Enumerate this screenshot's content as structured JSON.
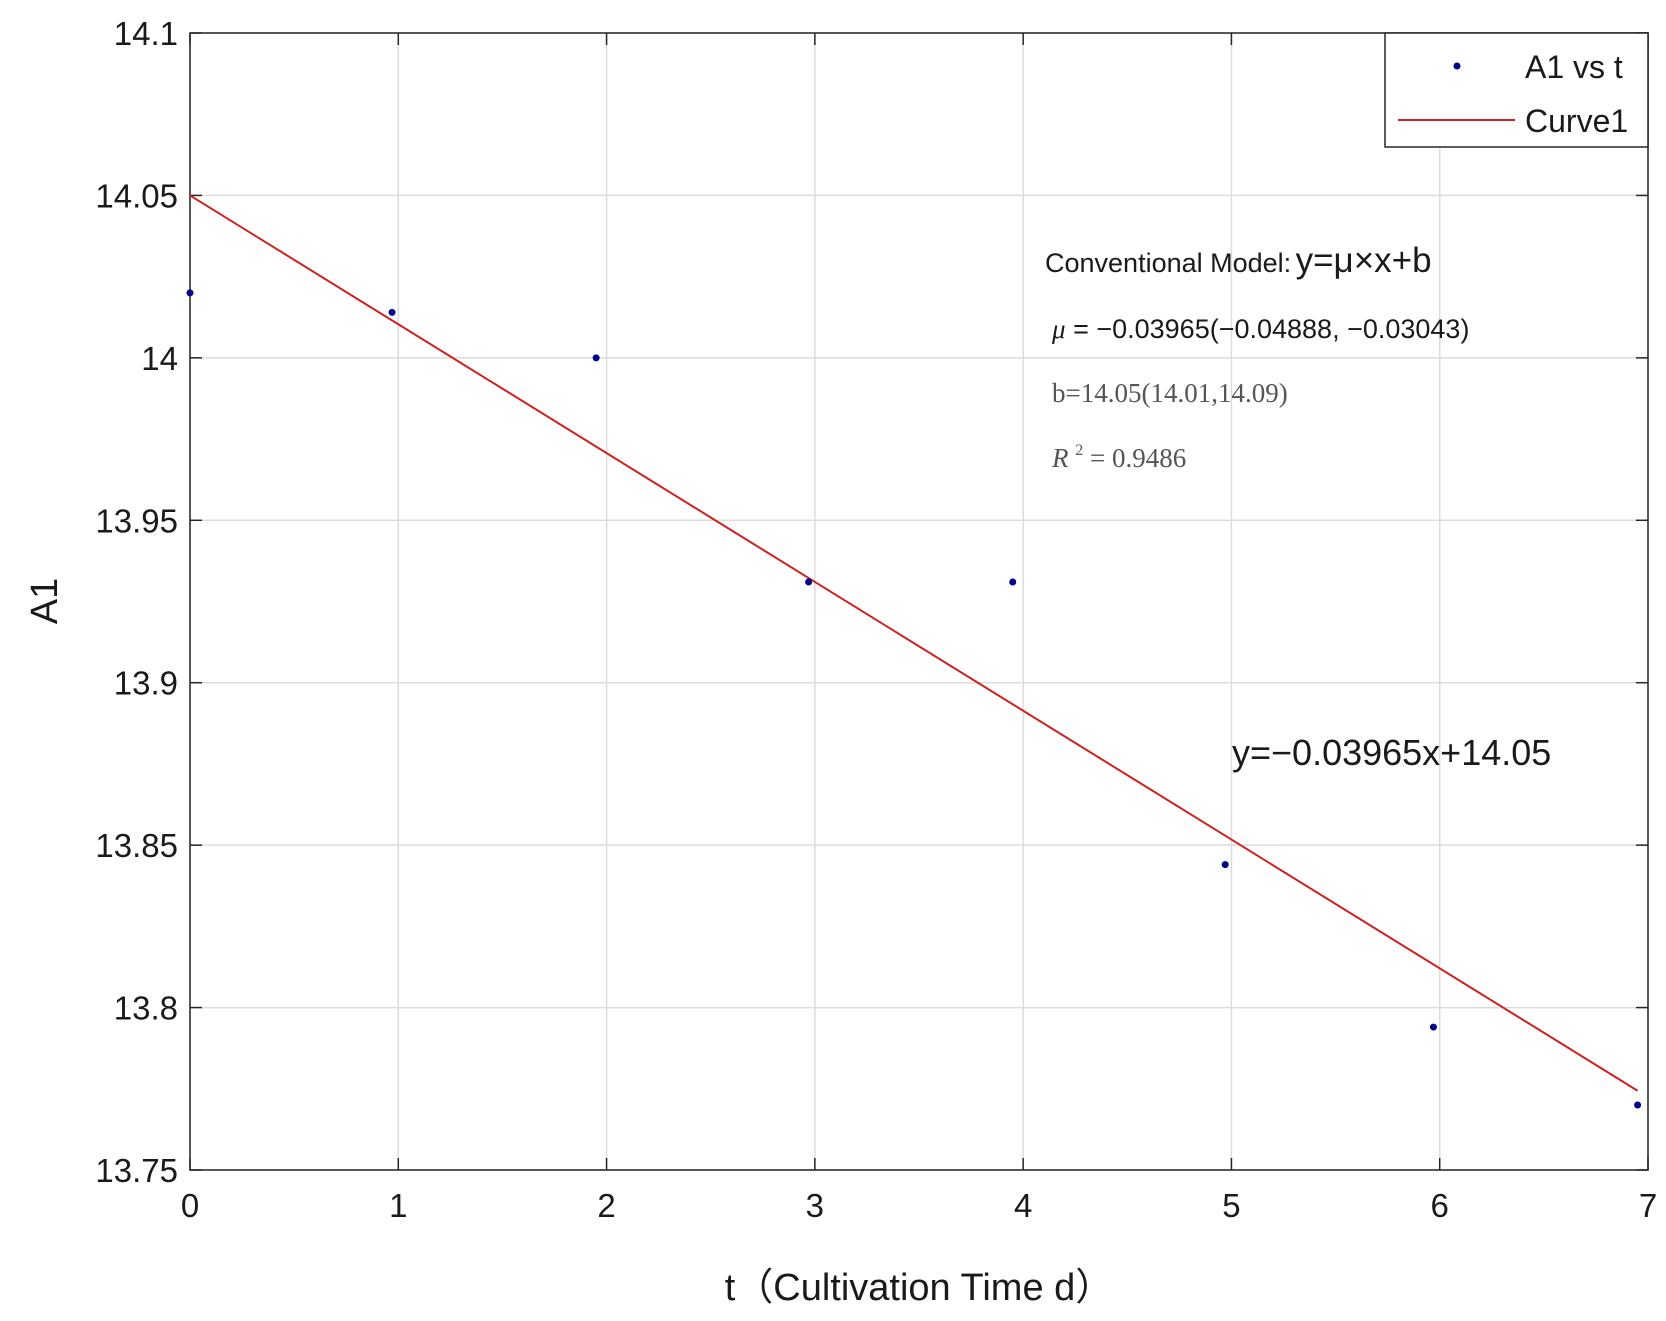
{
  "chart_data": {
    "type": "scatter",
    "xlabel": "t（Cultivation Time d）",
    "ylabel": "A1",
    "xlim": [
      0,
      7
    ],
    "ylim": [
      13.75,
      14.1
    ],
    "x_ticks": [
      "0",
      "1",
      "2",
      "3",
      "4",
      "5",
      "6",
      "7"
    ],
    "y_ticks": [
      "13.75",
      "13.8",
      "13.85",
      "13.9",
      "13.95",
      "14",
      "14.05",
      "14.1"
    ],
    "grid": true,
    "legend_position": "top-right",
    "series": [
      {
        "name": "A1 vs t",
        "kind": "scatter",
        "color": "#00008b",
        "x": [
          0,
          0.97,
          1.95,
          2.97,
          3.95,
          4.97,
          5.97,
          6.95
        ],
        "y": [
          14.02,
          14.014,
          14.0,
          13.931,
          13.931,
          13.844,
          13.794,
          13.77
        ]
      },
      {
        "name": "Curve1",
        "kind": "line",
        "color": "#cc2222",
        "x": [
          0,
          6.95
        ],
        "y": [
          14.05,
          13.7744
        ]
      }
    ],
    "annotations": {
      "model_prefix": "Conventional Model:",
      "model_formula": "y=μ×x+b",
      "mu_symbol": "μ",
      "mu_value": " = −0.03965(−0.04888, −0.03043)",
      "b_text": "b=14.05(14.01,14.09)",
      "r2_symbol": "R",
      "r2_exponent": "2",
      "r2_value": " = 0.9486",
      "fit_equation": "y=−0.03965x+14.05"
    }
  }
}
